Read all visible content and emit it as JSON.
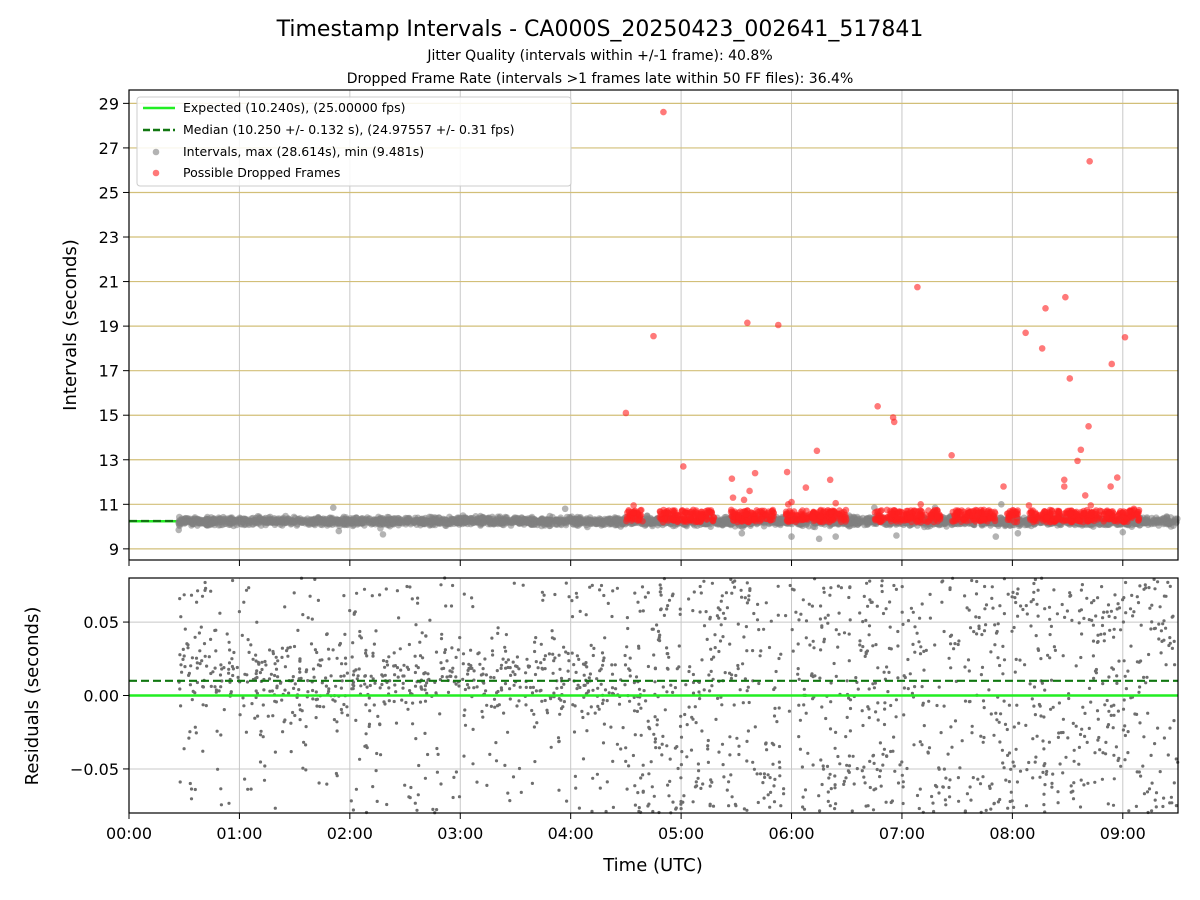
{
  "figure": {
    "title": "Timestamp Intervals - CA000S_20250423_002641_517841",
    "subtitle_1": "Jitter Quality (intervals within +/-1 frame): 40.8%",
    "subtitle_2": "Dropped Frame Rate (intervals >1 frames late within 50 FF files): 36.4%"
  },
  "colors": {
    "expected_line": "#22ee22",
    "median_line": "#117711",
    "intervals_points": "#808080",
    "dropped_points": "#ff2020",
    "hgrid_top": "#d2bf78",
    "vgrid": "#c8c8c8"
  },
  "chart_data": [
    {
      "type": "scatter",
      "name": "top-panel",
      "ylabel": "Intervals (seconds)",
      "xlabel": "",
      "xlim_hours": [
        0,
        9.5
      ],
      "ylim": [
        8.5,
        29.6
      ],
      "yticks": [
        9,
        11,
        13,
        15,
        17,
        19,
        21,
        23,
        25,
        27,
        29
      ],
      "grid": true,
      "legend_placement": "upper-left",
      "legend": {
        "expected": "Expected (10.240s), (25.00000 fps)",
        "median": "Median (10.250 +/- 0.132 s), (24.97557 +/- 0.31 fps)",
        "intervals": "Intervals, max (28.614s), min (9.481s)",
        "dropped": "Possible Dropped Frames"
      },
      "expected_value": 10.24,
      "median_value": 10.25,
      "intervals_summary": {
        "x_range_hours": [
          0.45,
          9.5
        ],
        "center": 10.24,
        "spread": 0.15,
        "approx_count": 3200
      },
      "intervals_outliers": [
        {
          "x": 0.45,
          "y": 9.85
        },
        {
          "x": 1.9,
          "y": 9.8
        },
        {
          "x": 2.3,
          "y": 9.65
        },
        {
          "x": 5.55,
          "y": 9.7
        },
        {
          "x": 6.0,
          "y": 9.55
        },
        {
          "x": 6.25,
          "y": 9.45
        },
        {
          "x": 6.4,
          "y": 9.55
        },
        {
          "x": 6.95,
          "y": 9.6
        },
        {
          "x": 7.85,
          "y": 9.55
        },
        {
          "x": 8.05,
          "y": 9.7
        },
        {
          "x": 9.0,
          "y": 9.75
        },
        {
          "x": 1.85,
          "y": 10.85
        },
        {
          "x": 3.95,
          "y": 10.8
        },
        {
          "x": 6.75,
          "y": 10.85
        },
        {
          "x": 7.9,
          "y": 11.0
        },
        {
          "x": 7.3,
          "y": 10.85
        }
      ],
      "dropped_summary": {
        "x_ranges_hours": [
          [
            4.5,
            4.65
          ],
          [
            4.8,
            5.3
          ],
          [
            5.45,
            5.85
          ],
          [
            5.95,
            6.5
          ],
          [
            6.75,
            7.35
          ],
          [
            7.45,
            7.85
          ],
          [
            7.95,
            8.05
          ],
          [
            8.15,
            9.15
          ]
        ],
        "y_range": [
          10.2,
          10.75
        ]
      },
      "dropped_points": [
        {
          "x": 4.5,
          "y": 15.1
        },
        {
          "x": 4.57,
          "y": 10.95
        },
        {
          "x": 4.75,
          "y": 18.55
        },
        {
          "x": 4.84,
          "y": 28.61
        },
        {
          "x": 5.02,
          "y": 12.7
        },
        {
          "x": 5.11,
          "y": 10.75
        },
        {
          "x": 5.46,
          "y": 12.15
        },
        {
          "x": 5.47,
          "y": 11.3
        },
        {
          "x": 5.57,
          "y": 11.2
        },
        {
          "x": 5.6,
          "y": 19.15
        },
        {
          "x": 5.62,
          "y": 11.6
        },
        {
          "x": 5.67,
          "y": 12.4
        },
        {
          "x": 5.88,
          "y": 19.05
        },
        {
          "x": 5.96,
          "y": 12.45
        },
        {
          "x": 5.97,
          "y": 11.0
        },
        {
          "x": 6.0,
          "y": 11.1
        },
        {
          "x": 6.13,
          "y": 11.75
        },
        {
          "x": 6.23,
          "y": 13.4
        },
        {
          "x": 6.35,
          "y": 12.1
        },
        {
          "x": 6.4,
          "y": 11.05
        },
        {
          "x": 6.78,
          "y": 15.4
        },
        {
          "x": 6.92,
          "y": 14.9
        },
        {
          "x": 6.93,
          "y": 14.7
        },
        {
          "x": 7.14,
          "y": 20.75
        },
        {
          "x": 7.17,
          "y": 11.0
        },
        {
          "x": 7.45,
          "y": 13.2
        },
        {
          "x": 7.92,
          "y": 11.8
        },
        {
          "x": 8.12,
          "y": 18.7
        },
        {
          "x": 8.15,
          "y": 10.95
        },
        {
          "x": 8.27,
          "y": 18.0
        },
        {
          "x": 8.3,
          "y": 19.8
        },
        {
          "x": 8.48,
          "y": 20.3
        },
        {
          "x": 8.47,
          "y": 12.1
        },
        {
          "x": 8.47,
          "y": 11.8
        },
        {
          "x": 8.52,
          "y": 16.65
        },
        {
          "x": 8.59,
          "y": 12.95
        },
        {
          "x": 8.62,
          "y": 13.45
        },
        {
          "x": 8.66,
          "y": 11.4
        },
        {
          "x": 8.69,
          "y": 14.5
        },
        {
          "x": 8.7,
          "y": 26.4
        },
        {
          "x": 8.71,
          "y": 10.95
        },
        {
          "x": 8.9,
          "y": 17.3
        },
        {
          "x": 8.89,
          "y": 11.8
        },
        {
          "x": 8.95,
          "y": 12.2
        },
        {
          "x": 9.02,
          "y": 18.5
        },
        {
          "x": 9.1,
          "y": 10.8
        }
      ]
    },
    {
      "type": "scatter",
      "name": "bottom-panel",
      "ylabel": "Residuals (seconds)",
      "xlabel": "Time (UTC)",
      "xlim_hours": [
        0,
        9.5
      ],
      "ylim": [
        -0.08,
        0.08
      ],
      "yticks": [
        -0.05,
        0.0,
        0.05
      ],
      "ytick_labels": [
        "−0.05",
        "0.00",
        "0.05"
      ],
      "xticks": [
        "00:00",
        "01:00",
        "02:00",
        "03:00",
        "04:00",
        "05:00",
        "06:00",
        "07:00",
        "08:00",
        "09:00"
      ],
      "grid": true,
      "expected_residual": 0.0,
      "median_residual": 0.01,
      "residuals_summary": {
        "x_range_hours": [
          0.45,
          9.5
        ],
        "range": [
          -0.08,
          0.08
        ],
        "approx_count": 1900
      }
    }
  ]
}
